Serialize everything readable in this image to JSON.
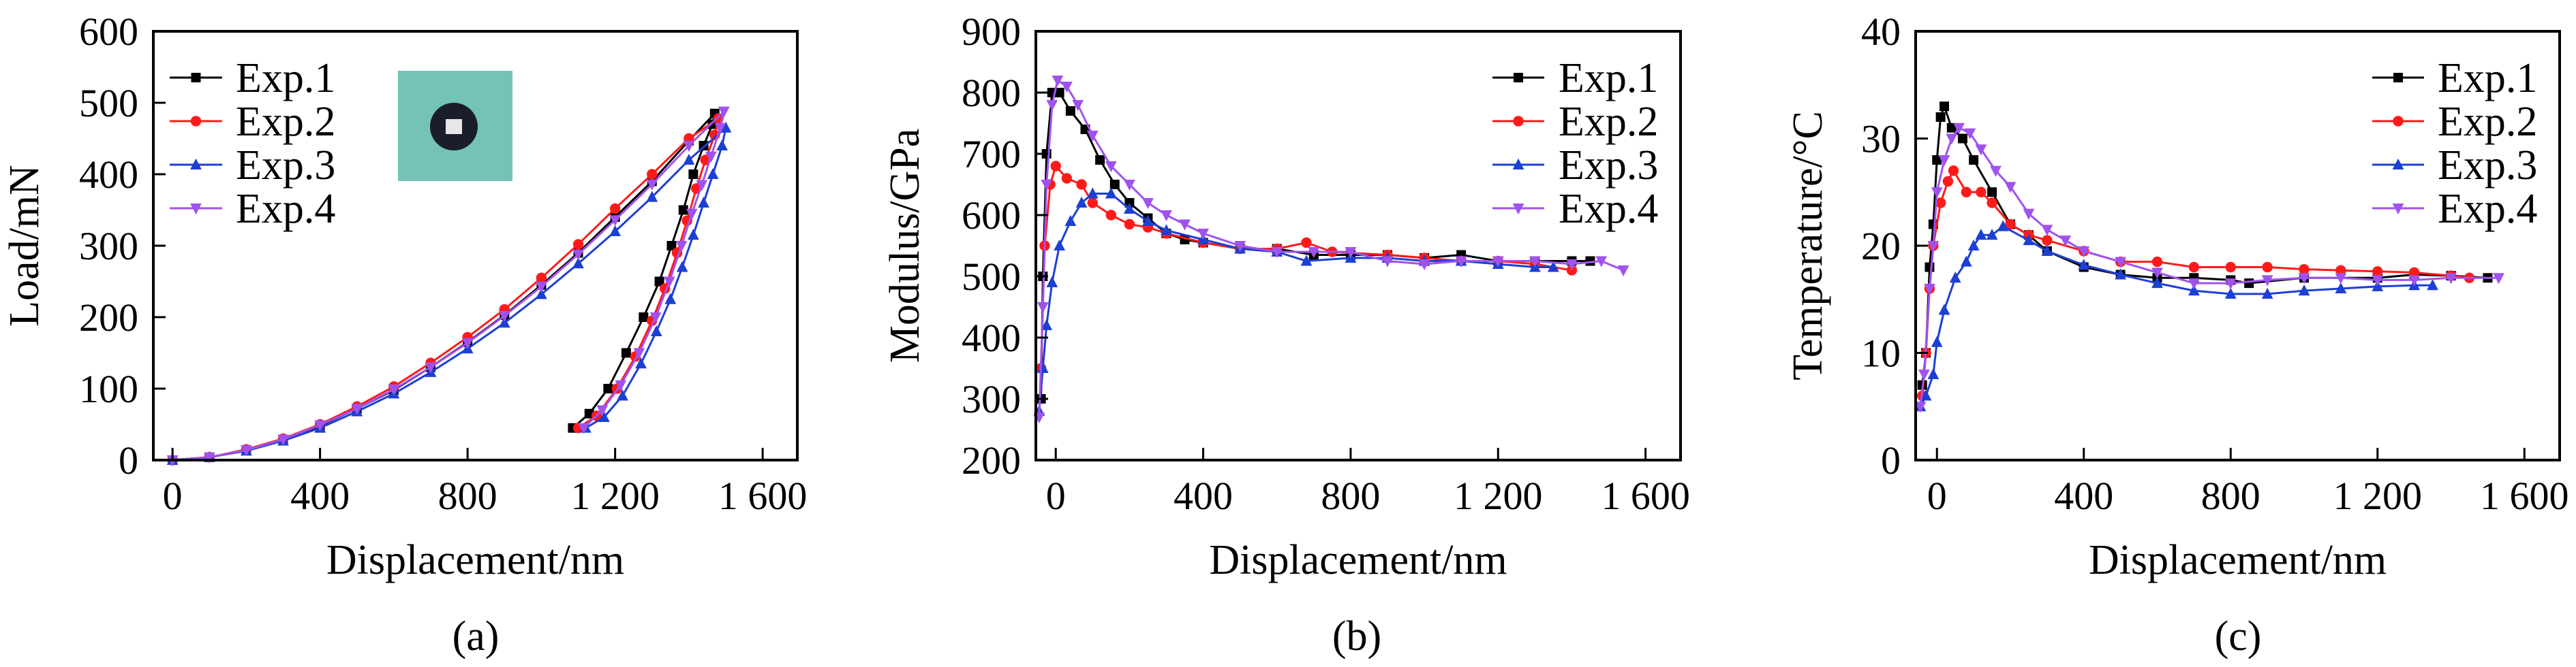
{
  "colors": {
    "Exp.1": "#000000",
    "Exp.2": "#ff1a1a",
    "Exp.3": "#1c3fd4",
    "Exp.4": "#a052ee"
  },
  "chart_data": [
    {
      "type": "line",
      "caption": "(a)",
      "xlabel": "Displacement/nm",
      "ylabel": "Load/mN",
      "xlim": [
        -52,
        1694
      ],
      "ylim": [
        0,
        600
      ],
      "xticks": [
        0,
        400,
        800,
        1200,
        1600
      ],
      "xtick_labels": [
        "0",
        "400",
        "800",
        "1 200",
        "1 600"
      ],
      "yticks": [
        0,
        100,
        200,
        300,
        400,
        500,
        600
      ],
      "ytick_labels": [
        "0",
        "100",
        "200",
        "300",
        "400",
        "500",
        "600"
      ],
      "legend": "top-left",
      "inset": "sample-photo",
      "series": [
        {
          "name": "Exp.1",
          "marker": "square",
          "x": [
            0,
            100,
            200,
            300,
            400,
            500,
            600,
            700,
            800,
            900,
            1000,
            1100,
            1200,
            1300,
            1400,
            1470,
            1464,
            1440,
            1412,
            1385,
            1353,
            1320,
            1277,
            1230,
            1181,
            1130,
            1085
          ],
          "y": [
            0,
            4,
            14,
            29,
            48,
            72,
            98,
            130,
            165,
            203,
            245,
            290,
            340,
            390,
            447,
            485,
            470,
            440,
            400,
            350,
            300,
            250,
            200,
            150,
            100,
            65,
            45
          ]
        },
        {
          "name": "Exp.2",
          "marker": "circle",
          "x": [
            0,
            100,
            200,
            300,
            400,
            500,
            600,
            700,
            800,
            900,
            1000,
            1100,
            1200,
            1300,
            1400,
            1480,
            1470,
            1445,
            1420,
            1395,
            1368,
            1335,
            1300,
            1255,
            1205,
            1150,
            1100
          ],
          "y": [
            0,
            4,
            15,
            30,
            50,
            75,
            103,
            136,
            172,
            211,
            255,
            302,
            352,
            400,
            450,
            478,
            455,
            420,
            380,
            335,
            290,
            240,
            195,
            145,
            100,
            62,
            45
          ]
        },
        {
          "name": "Exp.3",
          "marker": "triangle-up",
          "x": [
            0,
            100,
            200,
            300,
            400,
            500,
            600,
            700,
            800,
            900,
            1000,
            1100,
            1200,
            1300,
            1400,
            1500,
            1490,
            1465,
            1440,
            1412,
            1382,
            1350,
            1312,
            1270,
            1220,
            1170,
            1120
          ],
          "y": [
            0,
            4,
            13,
            27,
            45,
            68,
            93,
            123,
            156,
            192,
            232,
            275,
            320,
            368,
            420,
            465,
            440,
            400,
            360,
            315,
            270,
            225,
            180,
            135,
            90,
            60,
            45
          ]
        },
        {
          "name": "Exp.4",
          "marker": "triangle-down",
          "x": [
            0,
            100,
            200,
            300,
            400,
            500,
            600,
            700,
            800,
            900,
            1000,
            1100,
            1200,
            1300,
            1400,
            1495,
            1485,
            1460,
            1435,
            1408,
            1380,
            1347,
            1310,
            1265,
            1215,
            1165,
            1115
          ],
          "y": [
            0,
            4,
            14,
            29,
            49,
            72,
            99,
            130,
            164,
            202,
            243,
            288,
            336,
            386,
            440,
            488,
            465,
            425,
            385,
            345,
            300,
            250,
            200,
            150,
            105,
            70,
            45
          ]
        }
      ]
    },
    {
      "type": "line",
      "caption": "(b)",
      "xlabel": "Displacement/nm",
      "ylabel": "Modulus/GPa",
      "xlim": [
        -54,
        1695
      ],
      "ylim": [
        200,
        900
      ],
      "xticks": [
        0,
        400,
        800,
        1200,
        1600
      ],
      "xtick_labels": [
        "0",
        "400",
        "800",
        "1 200",
        "1 600"
      ],
      "yticks": [
        200,
        300,
        400,
        500,
        600,
        700,
        800,
        900
      ],
      "ytick_labels": [
        "200",
        "300",
        "400",
        "500",
        "600",
        "700",
        "800",
        "900"
      ],
      "legend": "top-right",
      "series": [
        {
          "name": "Exp.1",
          "marker": "square",
          "x": [
            -40,
            -35,
            -25,
            -10,
            10,
            40,
            80,
            120,
            160,
            200,
            250,
            300,
            350,
            400,
            500,
            600,
            700,
            800,
            900,
            1000,
            1100,
            1200,
            1300,
            1400,
            1450
          ],
          "y": [
            300,
            500,
            700,
            800,
            800,
            770,
            740,
            690,
            650,
            620,
            595,
            570,
            560,
            555,
            545,
            545,
            535,
            535,
            535,
            530,
            535,
            525,
            525,
            525,
            525
          ]
        },
        {
          "name": "Exp.2",
          "marker": "circle",
          "x": [
            -40,
            -30,
            -15,
            0,
            30,
            70,
            100,
            150,
            200,
            250,
            300,
            400,
            500,
            600,
            680,
            750,
            900,
            1000,
            1100,
            1200,
            1300,
            1400
          ],
          "y": [
            350,
            550,
            650,
            680,
            660,
            650,
            620,
            600,
            585,
            580,
            570,
            555,
            545,
            545,
            555,
            540,
            535,
            530,
            525,
            525,
            520,
            510
          ]
        },
        {
          "name": "Exp.3",
          "marker": "triangle-up",
          "x": [
            -45,
            -35,
            -25,
            -10,
            10,
            40,
            70,
            100,
            150,
            200,
            250,
            300,
            400,
            500,
            600,
            680,
            800,
            900,
            1000,
            1100,
            1200,
            1300,
            1350
          ],
          "y": [
            280,
            350,
            420,
            490,
            550,
            590,
            620,
            635,
            635,
            610,
            590,
            575,
            560,
            545,
            540,
            525,
            530,
            530,
            525,
            525,
            520,
            515,
            515
          ]
        },
        {
          "name": "Exp.4",
          "marker": "triangle-down",
          "x": [
            -45,
            -35,
            -25,
            -10,
            5,
            30,
            60,
            100,
            150,
            200,
            250,
            300,
            350,
            400,
            500,
            600,
            700,
            800,
            900,
            1000,
            1100,
            1200,
            1300,
            1400,
            1480,
            1540
          ],
          "y": [
            270,
            450,
            650,
            780,
            820,
            810,
            780,
            730,
            680,
            650,
            620,
            600,
            585,
            570,
            550,
            540,
            540,
            540,
            525,
            520,
            525,
            525,
            525,
            520,
            525,
            510
          ]
        }
      ]
    },
    {
      "type": "line",
      "caption": "(c)",
      "xlabel": "Displacement/nm",
      "ylabel": "Temperature/°C",
      "xlim": [
        -58,
        1696
      ],
      "ylim": [
        0,
        40
      ],
      "xticks": [
        0,
        400,
        800,
        1200,
        1600
      ],
      "xtick_labels": [
        "0",
        "400",
        "800",
        "1 200",
        "1 600"
      ],
      "yticks": [
        0,
        10,
        20,
        30,
        40
      ],
      "ytick_labels": [
        "0",
        "10",
        "20",
        "30",
        "40"
      ],
      "legend": "top-right",
      "series": [
        {
          "name": "Exp.1",
          "marker": "square",
          "x": [
            -40,
            -30,
            -20,
            -10,
            0,
            10,
            20,
            40,
            70,
            100,
            150,
            200,
            250,
            300,
            400,
            500,
            600,
            700,
            800,
            850,
            1000,
            1200,
            1300,
            1400,
            1500
          ],
          "y": [
            7,
            10,
            18,
            22,
            28,
            32,
            33,
            31,
            30,
            28,
            25,
            22,
            21,
            19.5,
            18,
            17.3,
            17,
            17,
            16.8,
            16.5,
            17,
            17,
            17.3,
            17.2,
            17
          ]
        },
        {
          "name": "Exp.2",
          "marker": "circle",
          "x": [
            -40,
            -30,
            -20,
            -10,
            10,
            30,
            45,
            80,
            120,
            150,
            200,
            250,
            300,
            400,
            500,
            600,
            700,
            800,
            900,
            1000,
            1100,
            1200,
            1300,
            1400,
            1450
          ],
          "y": [
            6,
            10,
            16,
            20,
            24,
            26,
            27,
            25,
            25,
            24,
            22,
            21,
            20.5,
            19.5,
            18.5,
            18.5,
            18,
            18,
            18,
            17.8,
            17.7,
            17.6,
            17.5,
            17.2,
            17
          ]
        },
        {
          "name": "Exp.3",
          "marker": "triangle-up",
          "x": [
            -45,
            -30,
            -10,
            0,
            20,
            50,
            80,
            100,
            120,
            150,
            180,
            250,
            300,
            400,
            500,
            600,
            700,
            800,
            900,
            1000,
            1100,
            1200,
            1300,
            1350
          ],
          "y": [
            5,
            6,
            8,
            11,
            14,
            17,
            18.5,
            20,
            21,
            21,
            21.8,
            20.5,
            19.5,
            18.2,
            17.3,
            16.5,
            15.8,
            15.5,
            15.5,
            15.8,
            16,
            16.2,
            16.3,
            16.3
          ]
        },
        {
          "name": "Exp.4",
          "marker": "triangle-down",
          "x": [
            -45,
            -35,
            -20,
            -10,
            0,
            20,
            40,
            60,
            90,
            120,
            160,
            200,
            250,
            300,
            350,
            400,
            500,
            600,
            700,
            800,
            900,
            1000,
            1100,
            1200,
            1300,
            1400,
            1530
          ],
          "y": [
            5,
            8,
            16,
            20,
            25,
            28,
            30,
            31,
            30.5,
            29,
            27,
            25.5,
            23,
            21.5,
            20.5,
            19.5,
            18.5,
            17.5,
            16.5,
            16.5,
            16.8,
            17,
            17,
            16.8,
            16.8,
            17,
            17
          ]
        }
      ]
    }
  ]
}
